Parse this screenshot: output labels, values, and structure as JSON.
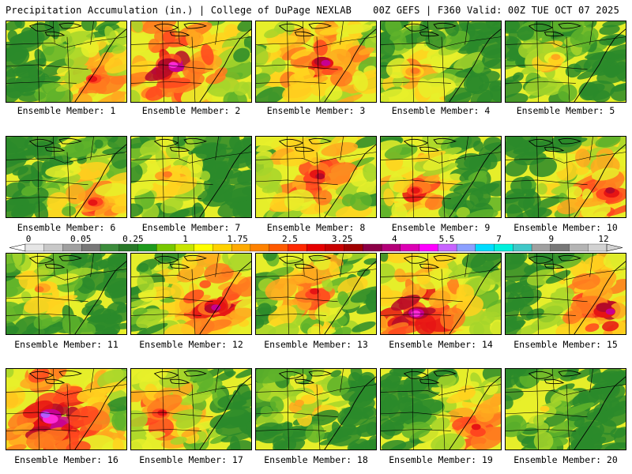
{
  "header": {
    "left_title": "Precipitation Accumulation (in.) | College of DuPage NEXLAB",
    "right_title": "00Z GEFS | F360 Valid: 00Z TUE OCT 07 2025"
  },
  "members": [
    {
      "label": "Ensemble Member: 1",
      "intensity": 0.55,
      "hotspot": [
        0.75,
        0.75
      ]
    },
    {
      "label": "Ensemble Member: 2",
      "intensity": 0.8,
      "hotspot": [
        0.35,
        0.55
      ]
    },
    {
      "label": "Ensemble Member: 3",
      "intensity": 0.7,
      "hotspot": [
        0.55,
        0.5
      ]
    },
    {
      "label": "Ensemble Member: 4",
      "intensity": 0.45,
      "hotspot": [
        0.3,
        0.65
      ]
    },
    {
      "label": "Ensemble Member: 5",
      "intensity": 0.35,
      "hotspot": [
        0.4,
        0.45
      ]
    },
    {
      "label": "Ensemble Member: 6",
      "intensity": 0.55,
      "hotspot": [
        0.75,
        0.8
      ]
    },
    {
      "label": "Ensemble Member: 7",
      "intensity": 0.4,
      "hotspot": [
        0.3,
        0.5
      ]
    },
    {
      "label": "Ensemble Member: 8",
      "intensity": 0.65,
      "hotspot": [
        0.5,
        0.5
      ]
    },
    {
      "label": "Ensemble Member: 9",
      "intensity": 0.55,
      "hotspot": [
        0.3,
        0.65
      ]
    },
    {
      "label": "Ensemble Member: 10",
      "intensity": 0.65,
      "hotspot": [
        0.85,
        0.7
      ]
    },
    {
      "label": "Ensemble Member: 11",
      "intensity": 0.4,
      "hotspot": [
        0.3,
        0.45
      ]
    },
    {
      "label": "Ensemble Member: 12",
      "intensity": 0.7,
      "hotspot": [
        0.7,
        0.65
      ]
    },
    {
      "label": "Ensemble Member: 13",
      "intensity": 0.55,
      "hotspot": [
        0.45,
        0.5
      ]
    },
    {
      "label": "Ensemble Member: 14",
      "intensity": 0.8,
      "hotspot": [
        0.3,
        0.75
      ]
    },
    {
      "label": "Ensemble Member: 15",
      "intensity": 0.7,
      "hotspot": [
        0.85,
        0.7
      ]
    },
    {
      "label": "Ensemble Member: 16",
      "intensity": 0.85,
      "hotspot": [
        0.35,
        0.6
      ]
    },
    {
      "label": "Ensemble Member: 17",
      "intensity": 0.6,
      "hotspot": [
        0.25,
        0.55
      ]
    },
    {
      "label": "Ensemble Member: 18",
      "intensity": 0.35,
      "hotspot": [
        0.4,
        0.4
      ]
    },
    {
      "label": "Ensemble Member: 19",
      "intensity": 0.6,
      "hotspot": [
        0.8,
        0.75
      ]
    },
    {
      "label": "Ensemble Member: 20",
      "intensity": 0.3,
      "hotspot": [
        0.3,
        0.5
      ]
    }
  ],
  "colorbar": {
    "tick_labels": [
      "0",
      "0.05",
      "0.25",
      "1",
      "1.75",
      "2.5",
      "3.25",
      "4",
      "5.5",
      "7",
      "9",
      "12"
    ],
    "colors": [
      "#e6e6e6",
      "#c8c8c8",
      "#a0a0a0",
      "#787878",
      "#3c8c3c",
      "#287828",
      "#1e9a1e",
      "#78c800",
      "#c8e600",
      "#ffff00",
      "#ffd200",
      "#ffaa00",
      "#ff8200",
      "#ff5a00",
      "#ff2800",
      "#e60000",
      "#c80000",
      "#a00000",
      "#8c0046",
      "#b40078",
      "#dc00b4",
      "#ff00ff",
      "#c864ff",
      "#8ca0ff",
      "#00dcff",
      "#00f0dc",
      "#40c8c8",
      "#a0a0a0",
      "#787878",
      "#b4b4b4",
      "#d2d2d2"
    ]
  }
}
